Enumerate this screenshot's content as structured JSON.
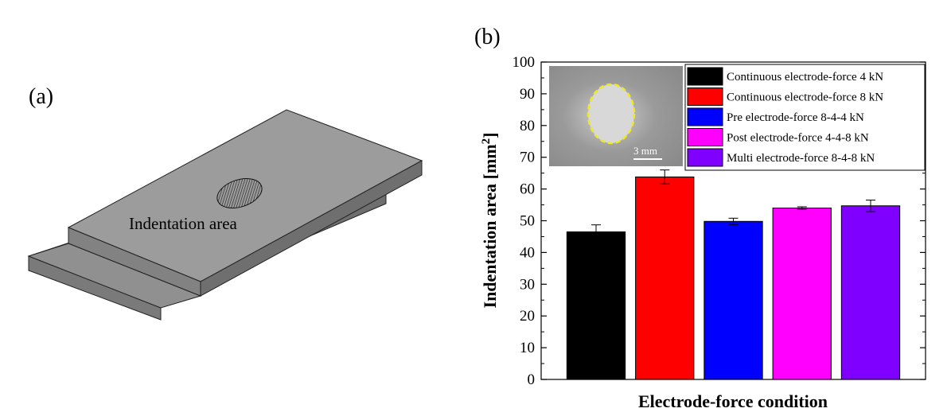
{
  "panel_a": {
    "label": "(a)",
    "annotation": "Indentation area"
  },
  "panel_b": {
    "label": "(b)",
    "inset_scale_label": "3 mm"
  },
  "chart_data": {
    "type": "bar",
    "title": "",
    "xlabel": "Electrode-force condition",
    "ylabel": "Indentation area [mm",
    "ylabel_sup": "2",
    "ylabel_close": "]",
    "ylim": [
      0,
      100
    ],
    "yticks": [
      "0",
      "10",
      "20",
      "30",
      "40",
      "50",
      "60",
      "70",
      "80",
      "90",
      "100"
    ],
    "legend_position": "top-right",
    "categories": [
      "Continuous electrode-force 4 kN",
      "Continuous electrode-force 8 kN",
      "Pre electrode-force 8-4-4 kN",
      "Post electrode-force 4-4-8 kN",
      "Multi electrode-force 8-4-8 kN"
    ],
    "values": [
      46.5,
      63.8,
      49.8,
      54.0,
      54.7
    ],
    "errors": [
      2.2,
      2.2,
      1.0,
      0.4,
      1.8
    ],
    "colors": [
      "#000000",
      "#ff0000",
      "#0000ff",
      "#ff00ff",
      "#7f00ff"
    ]
  }
}
